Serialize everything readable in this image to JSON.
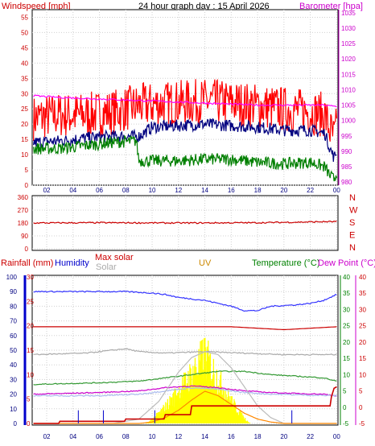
{
  "header": {
    "title": "24 hour graph day : 15 April 2026",
    "left_label": "Windspeed [mph]",
    "right_label": "Barometer [hpa]",
    "colors": {
      "title": "#000000",
      "left_label": "#cc0000",
      "right_label": "#cc00cc"
    }
  },
  "x_ticks": [
    "02",
    "04",
    "06",
    "08",
    "10",
    "12",
    "14",
    "16",
    "18",
    "20",
    "22",
    "00"
  ],
  "compass_letters": [
    "N",
    "W",
    "S",
    "E",
    "N"
  ],
  "chart_data": [
    {
      "id": "wind-baro",
      "type": "line",
      "title": "24 hour graph day : 15 April 2026",
      "ylabel_left": "Windspeed [mph]",
      "ylabel_right": "Barometer [hpa]",
      "y_left_ticks": [
        "0",
        "5",
        "10",
        "15",
        "20",
        "25",
        "30",
        "35",
        "40",
        "45",
        "50",
        "55"
      ],
      "y_right_ticks": [
        "980",
        "985",
        "990",
        "995",
        "1000",
        "1005",
        "1010",
        "1015",
        "1020",
        "1025",
        "1030",
        "1035"
      ],
      "ylim_left": [
        0,
        57.5
      ],
      "ylim_right": [
        979,
        1036
      ],
      "xlim_hours": [
        0.9,
        24.1
      ],
      "series": [
        {
          "key": "gust",
          "color": "#ff0000",
          "axis": "left",
          "noise": 7.5,
          "step": 0.05,
          "values": [
            [
              1,
              22
            ],
            [
              3,
              23
            ],
            [
              5,
              23
            ],
            [
              7,
              24
            ],
            [
              9,
              26
            ],
            [
              12,
              27
            ],
            [
              14,
              27.5
            ],
            [
              16,
              27
            ],
            [
              18,
              26
            ],
            [
              20,
              25
            ],
            [
              22,
              24
            ],
            [
              23.1,
              23
            ],
            [
              23.5,
              18
            ],
            [
              23.8,
              15
            ],
            [
              24,
              19
            ]
          ]
        },
        {
          "key": "avg",
          "color": "#00007f",
          "axis": "left",
          "noise": 2,
          "step": 0.05,
          "values": [
            [
              1,
              14
            ],
            [
              3,
              14.5
            ],
            [
              5,
              15.5
            ],
            [
              7,
              16
            ],
            [
              8.5,
              16
            ],
            [
              9,
              16
            ],
            [
              10,
              19
            ],
            [
              12,
              19.5
            ],
            [
              14,
              20
            ],
            [
              16,
              19.5
            ],
            [
              18,
              19
            ],
            [
              20,
              18
            ],
            [
              22,
              18
            ],
            [
              23.1,
              17
            ],
            [
              23.5,
              12
            ],
            [
              23.8,
              9
            ],
            [
              24,
              11
            ]
          ]
        },
        {
          "key": "wind",
          "color": "#007f00",
          "axis": "left",
          "noise": 2,
          "step": 0.05,
          "values": [
            [
              1,
              12
            ],
            [
              3,
              12
            ],
            [
              5,
              13
            ],
            [
              7,
              14
            ],
            [
              8.8,
              14.5
            ],
            [
              9,
              8
            ],
            [
              12,
              8
            ],
            [
              14,
              8.5
            ],
            [
              16,
              8.5
            ],
            [
              18,
              7.5
            ],
            [
              20,
              7
            ],
            [
              22,
              7.5
            ],
            [
              23.1,
              6
            ],
            [
              23.5,
              3
            ],
            [
              23.8,
              2
            ],
            [
              24,
              4
            ]
          ]
        },
        {
          "key": "barometer",
          "color": "#ff00ff",
          "axis": "right",
          "noise": 0.3,
          "step": 0.1,
          "values": [
            [
              1,
              1008
            ],
            [
              3,
              1007.5
            ],
            [
              6,
              1007
            ],
            [
              9,
              1006.5
            ],
            [
              12,
              1006
            ],
            [
              15,
              1005.5
            ],
            [
              18,
              1005
            ],
            [
              21,
              1005
            ],
            [
              23,
              1005
            ],
            [
              24,
              1004.5
            ]
          ]
        }
      ]
    },
    {
      "id": "direction",
      "type": "line",
      "y_ticks": [
        "360",
        "270",
        "180",
        "90",
        "0"
      ],
      "ylim": [
        0,
        360
      ],
      "xlim_hours": [
        0.9,
        24.1
      ],
      "series": [
        {
          "key": "wind_direction",
          "color": "#cc0000",
          "noise": 5,
          "step": 0.1,
          "values": [
            [
              1,
              180
            ],
            [
              6,
              182
            ],
            [
              12,
              180
            ],
            [
              18,
              182
            ],
            [
              24,
              190
            ]
          ]
        }
      ]
    },
    {
      "id": "rain-temp",
      "type": "line",
      "labels": {
        "rainfall": "Rainfall (mm)",
        "humidity": "Humidity",
        "max_solar": "Max solar",
        "solar": "Solar",
        "uv": "UV",
        "temperature": "Temperature (°C)",
        "dew_point": "Dew Point (°C)"
      },
      "label_colors": {
        "rainfall": "#cc0000",
        "humidity": "#0000cc",
        "max_solar": "#cc0000",
        "solar": "#aaaaaa",
        "uv": "#cc8800",
        "temperature": "#008000",
        "dew_point": "#cc00cc"
      },
      "y_humidity_ticks": [
        "0",
        "10",
        "20",
        "30",
        "40",
        "50",
        "60",
        "70",
        "80",
        "90",
        "100"
      ],
      "y_rain_ticks": [
        "0",
        "5",
        "10",
        "15",
        "20",
        "25",
        "30"
      ],
      "y_temp_ticks": [
        "-5",
        "0",
        "5",
        "10",
        "15",
        "20",
        "25",
        "30",
        "35",
        "40"
      ],
      "y_dew_ticks": [
        "-5",
        "0",
        "5",
        "10",
        "15",
        "20",
        "25",
        "30",
        "35",
        "40"
      ],
      "ylim_humidity": [
        0,
        100
      ],
      "ylim_temp": [
        -5,
        40
      ],
      "xlim_hours": [
        0.9,
        24.1
      ],
      "series": [
        {
          "key": "humidity",
          "color": "#3333ff",
          "axis": "humidity",
          "noise": 0.4,
          "step": 0.1,
          "values": [
            [
              1,
              90
            ],
            [
              8,
              90
            ],
            [
              10,
              89
            ],
            [
              11,
              88
            ],
            [
              12,
              86
            ],
            [
              14,
              84
            ],
            [
              16,
              80
            ],
            [
              17,
              77
            ],
            [
              18,
              77
            ],
            [
              19,
              80
            ],
            [
              21,
              81
            ],
            [
              22,
              82
            ],
            [
              23,
              84
            ],
            [
              24,
              88
            ]
          ]
        },
        {
          "key": "max_solar",
          "color": "#cc0000",
          "axis": "humidity",
          "noise": 0,
          "step": 0.1,
          "values": [
            [
              1,
              66
            ],
            [
              10,
              66
            ],
            [
              16,
              66
            ],
            [
              18,
              65
            ],
            [
              20,
              64
            ],
            [
              22,
              65
            ],
            [
              24,
              66
            ]
          ]
        },
        {
          "key": "solar_grey",
          "color": "#aaaaaa",
          "axis": "humidity",
          "noise": 0.4,
          "step": 0.1,
          "values": [
            [
              1,
              47
            ],
            [
              5,
              48
            ],
            [
              8,
              51
            ],
            [
              9,
              49
            ],
            [
              11,
              48
            ],
            [
              14,
              49
            ],
            [
              17,
              48
            ],
            [
              20,
              47
            ],
            [
              24,
              47
            ]
          ]
        },
        {
          "key": "temperature",
          "color": "#339933",
          "axis": "temp",
          "noise": 0.15,
          "step": 0.1,
          "values": [
            [
              1,
              7
            ],
            [
              6,
              7.5
            ],
            [
              9,
              8
            ],
            [
              11,
              9
            ],
            [
              13,
              10
            ],
            [
              15,
              11
            ],
            [
              17,
              11
            ],
            [
              19,
              10
            ],
            [
              21,
              9.5
            ],
            [
              23,
              9
            ],
            [
              24,
              8
            ]
          ]
        },
        {
          "key": "dew_point",
          "color": "#cc00cc",
          "axis": "temp",
          "noise": 0.15,
          "step": 0.1,
          "values": [
            [
              1,
              4
            ],
            [
              6,
              4.5
            ],
            [
              9,
              5
            ],
            [
              11,
              6
            ],
            [
              13,
              6.5
            ],
            [
              15,
              6
            ],
            [
              17,
              5
            ],
            [
              19,
              4.5
            ],
            [
              21,
              4.2
            ],
            [
              23,
              4
            ],
            [
              24,
              3.5
            ]
          ]
        },
        {
          "key": "solar_light",
          "color": "#aabbee",
          "axis": "temp",
          "noise": 0.2,
          "step": 0.1,
          "values": [
            [
              1,
              3.5
            ],
            [
              6,
              3.5
            ],
            [
              9,
              4
            ],
            [
              11,
              5
            ],
            [
              13,
              6
            ],
            [
              15,
              5.5
            ],
            [
              17,
              4.5
            ],
            [
              19,
              4
            ],
            [
              24,
              3.5
            ]
          ]
        },
        {
          "key": "solar_curve",
          "color": "#bbbbbb",
          "axis": "humidity",
          "noise": 0,
          "step": 0.1,
          "values": [
            [
              1,
              0
            ],
            [
              7,
              0
            ],
            [
              9,
              3
            ],
            [
              10.5,
              15
            ],
            [
              12,
              35
            ],
            [
              13,
              45
            ],
            [
              14,
              49
            ],
            [
              15,
              47
            ],
            [
              16,
              38
            ],
            [
              17,
              25
            ],
            [
              18,
              12
            ],
            [
              19,
              4
            ],
            [
              20,
              0
            ],
            [
              24,
              0
            ]
          ]
        },
        {
          "key": "uv_line",
          "color": "#ff8800",
          "axis": "humidity",
          "noise": 0,
          "step": 0.1,
          "values": [
            [
              1,
              0
            ],
            [
              9,
              0
            ],
            [
              10,
              1
            ],
            [
              11,
              4
            ],
            [
              12,
              9
            ],
            [
              13,
              16
            ],
            [
              14,
              22
            ],
            [
              15,
              19
            ],
            [
              16,
              13
            ],
            [
              17,
              7
            ],
            [
              18,
              3
            ],
            [
              19,
              1
            ],
            [
              20,
              0
            ],
            [
              24,
              0
            ]
          ]
        },
        {
          "key": "rainfall",
          "color": "#cc0000",
          "axis": "humidity",
          "noise": 0,
          "step": 0.05,
          "values": [
            [
              1,
              0
            ],
            [
              2.9,
              0
            ],
            [
              3,
              1.5
            ],
            [
              7.9,
              1.5
            ],
            [
              8,
              3
            ],
            [
              10.9,
              3
            ],
            [
              11,
              6
            ],
            [
              12.9,
              6
            ],
            [
              13,
              12
            ],
            [
              23.5,
              12
            ],
            [
              23.6,
              18
            ],
            [
              23.8,
              24
            ],
            [
              24,
              25
            ]
          ]
        }
      ],
      "solar_bars": {
        "color": "#ffff00",
        "start": 9.5,
        "end": 17.5,
        "peak": 14,
        "max": 63
      },
      "rain_markers": [
        4.4,
        6.3,
        10.2,
        20.6
      ]
    }
  ]
}
